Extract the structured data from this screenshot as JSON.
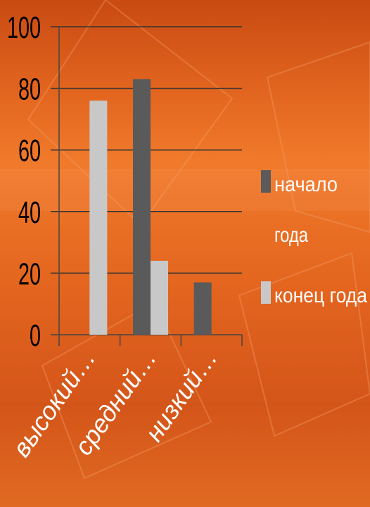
{
  "chart_data": {
    "type": "bar",
    "categories": [
      "высокий…",
      "средний…",
      "низкий…"
    ],
    "series": [
      {
        "name": "начало года",
        "values": [
          0,
          83,
          17
        ],
        "color": "#5a5a5a"
      },
      {
        "name": "конец года",
        "values": [
          76,
          24,
          0
        ],
        "color": "#c8c8c8"
      }
    ],
    "yticks": [
      "0",
      "20",
      "40",
      "60",
      "80",
      "100"
    ],
    "ylim": [
      0,
      100
    ],
    "grid": true,
    "legend_placement": "right",
    "legend": {
      "series0_line1": "начало",
      "series0_line2": "года",
      "series1_line1": "конец года"
    }
  }
}
